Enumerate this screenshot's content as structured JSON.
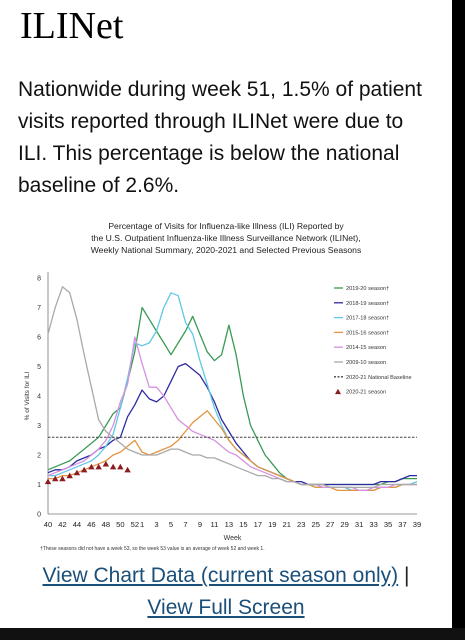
{
  "page": {
    "title": "ILINet",
    "summary": "Nationwide during week 51, 1.5% of patient visits reported through ILINet were due to ILI. This percentage is below the national baseline of 2.6%."
  },
  "links": {
    "chart_data": "View Chart Data (current season only)",
    "separator": " |",
    "full_screen": "View Full Screen"
  },
  "chart_data": {
    "type": "line",
    "title_lines": [
      "Percentage of Visits for Influenza-like Illness (ILI) Reported by",
      "the U.S. Outpatient Influenza-like Illness Surveillance Network (ILINet),",
      "Weekly National Summary, 2020-2021 and Selected Previous Seasons"
    ],
    "xlabel": "Week",
    "ylabel": "% of Visits for ILI",
    "ylim": [
      0,
      8
    ],
    "yticks": [
      0,
      1,
      2,
      3,
      4,
      5,
      6,
      7,
      8
    ],
    "weeks": [
      40,
      41,
      42,
      43,
      44,
      45,
      46,
      47,
      48,
      49,
      50,
      51,
      52,
      1,
      2,
      3,
      4,
      5,
      6,
      7,
      8,
      9,
      10,
      11,
      12,
      13,
      14,
      15,
      16,
      17,
      18,
      19,
      20,
      21,
      22,
      23,
      24,
      25,
      26,
      27,
      28,
      29,
      30,
      31,
      32,
      33,
      34,
      35,
      36,
      37,
      38,
      39
    ],
    "xtick_labels": [
      "40",
      "42",
      "44",
      "46",
      "48",
      "50",
      "52",
      "1",
      "3",
      "5",
      "7",
      "9",
      "11",
      "13",
      "15",
      "17",
      "19",
      "21",
      "23",
      "25",
      "27",
      "29",
      "31",
      "33",
      "35",
      "37",
      "39"
    ],
    "footnote": "†These seasons did not have a week 53, so the week 53 value is an average of week 52 and week 1.",
    "grid": false,
    "legend_position": "right",
    "series": [
      {
        "name": "2019-20 season†",
        "color": "#3a9a55",
        "values": [
          1.5,
          1.6,
          1.7,
          1.8,
          2.0,
          2.2,
          2.4,
          2.6,
          3.0,
          3.4,
          3.6,
          4.5,
          5.5,
          7.0,
          6.6,
          6.2,
          5.8,
          5.4,
          5.8,
          6.2,
          6.7,
          6.1,
          5.5,
          5.2,
          5.4,
          6.4,
          5.4,
          4.0,
          3.0,
          2.5,
          2.0,
          1.7,
          1.4,
          1.2,
          1.1,
          1.0,
          1.0,
          1.0,
          1.0,
          1.0,
          1.0,
          1.0,
          1.0,
          1.0,
          1.0,
          1.0,
          1.0,
          1.1,
          1.1,
          1.2,
          1.2,
          1.2
        ]
      },
      {
        "name": "2018-19 season†",
        "color": "#2e2aa1",
        "values": [
          1.4,
          1.5,
          1.5,
          1.6,
          1.8,
          1.9,
          2.0,
          2.2,
          2.3,
          2.5,
          2.6,
          3.3,
          3.7,
          4.2,
          3.9,
          3.8,
          4.0,
          4.5,
          5.0,
          5.1,
          4.9,
          4.7,
          4.3,
          3.8,
          3.2,
          2.8,
          2.4,
          2.1,
          1.8,
          1.6,
          1.5,
          1.4,
          1.3,
          1.2,
          1.1,
          1.1,
          1.0,
          1.0,
          1.0,
          1.0,
          1.0,
          1.0,
          1.0,
          1.0,
          1.0,
          1.0,
          1.1,
          1.1,
          1.1,
          1.2,
          1.3,
          1.3
        ]
      },
      {
        "name": "2017-18 season†",
        "color": "#5fc8e6",
        "values": [
          1.3,
          1.3,
          1.4,
          1.5,
          1.6,
          1.7,
          1.8,
          2.0,
          2.3,
          2.7,
          3.6,
          4.6,
          5.8,
          5.7,
          5.8,
          6.2,
          7.0,
          7.5,
          7.4,
          6.5,
          6.1,
          5.2,
          4.4,
          3.6,
          3.0,
          2.5,
          2.2,
          2.0,
          1.8,
          1.6,
          1.5,
          1.4,
          1.3,
          1.2,
          1.1,
          1.0,
          1.0,
          0.9,
          0.9,
          0.9,
          0.9,
          0.9,
          0.8,
          0.8,
          0.8,
          0.8,
          0.9,
          0.9,
          0.9,
          1.0,
          1.0,
          1.1
        ]
      },
      {
        "name": "2015-16 season†",
        "color": "#e49440",
        "values": [
          1.2,
          1.2,
          1.3,
          1.3,
          1.4,
          1.5,
          1.6,
          1.7,
          1.8,
          2.0,
          2.1,
          2.3,
          2.5,
          2.1,
          2.0,
          2.1,
          2.2,
          2.3,
          2.5,
          2.8,
          3.1,
          3.3,
          3.5,
          3.2,
          2.9,
          2.5,
          2.2,
          2.0,
          1.8,
          1.6,
          1.5,
          1.4,
          1.3,
          1.2,
          1.1,
          1.0,
          1.0,
          0.9,
          0.9,
          0.9,
          0.8,
          0.8,
          0.8,
          0.8,
          0.8,
          0.8,
          0.9,
          0.9,
          0.9,
          1.0,
          1.0,
          1.0
        ]
      },
      {
        "name": "2014-15 season",
        "color": "#d592e0",
        "values": [
          1.3,
          1.4,
          1.5,
          1.6,
          1.7,
          1.8,
          2.0,
          2.2,
          2.5,
          3.0,
          3.8,
          4.4,
          6.0,
          5.1,
          4.3,
          4.3,
          4.0,
          3.6,
          3.2,
          3.0,
          2.8,
          2.7,
          2.6,
          2.5,
          2.3,
          2.1,
          2.0,
          1.8,
          1.6,
          1.5,
          1.4,
          1.3,
          1.2,
          1.1,
          1.1,
          1.0,
          1.0,
          1.0,
          0.9,
          0.9,
          0.9,
          0.9,
          0.9,
          0.8,
          0.8,
          0.9,
          0.9,
          0.9,
          1.0,
          1.0,
          1.0,
          1.0
        ]
      },
      {
        "name": "2009-10 season",
        "color": "#a9a9a9",
        "values": [
          6.1,
          7.0,
          7.7,
          7.5,
          6.6,
          5.4,
          4.3,
          3.2,
          2.8,
          2.6,
          2.4,
          2.2,
          2.1,
          2.0,
          2.0,
          2.0,
          2.1,
          2.2,
          2.2,
          2.1,
          2.0,
          2.0,
          1.9,
          1.9,
          1.8,
          1.7,
          1.6,
          1.5,
          1.4,
          1.3,
          1.3,
          1.2,
          1.2,
          1.1,
          1.1,
          1.0,
          1.0,
          1.0,
          1.0,
          0.9,
          0.9,
          0.9,
          0.9,
          0.9,
          0.9,
          0.9,
          1.0,
          1.0,
          1.0,
          1.0,
          1.0,
          1.0
        ]
      },
      {
        "name": "2020-21 National Baseline",
        "color": "#444444",
        "dashed": true,
        "values": [
          2.6,
          2.6,
          2.6,
          2.6,
          2.6,
          2.6,
          2.6,
          2.6,
          2.6,
          2.6,
          2.6,
          2.6,
          2.6,
          2.6,
          2.6,
          2.6,
          2.6,
          2.6,
          2.6,
          2.6,
          2.6,
          2.6,
          2.6,
          2.6,
          2.6,
          2.6,
          2.6,
          2.6,
          2.6,
          2.6,
          2.6,
          2.6,
          2.6,
          2.6,
          2.6,
          2.6,
          2.6,
          2.6,
          2.6,
          2.6,
          2.6,
          2.6,
          2.6,
          2.6,
          2.6,
          2.6,
          2.6,
          2.6,
          2.6,
          2.6,
          2.6,
          2.6
        ]
      },
      {
        "name": "2020-21 season",
        "color": "#8a1c22",
        "marker": "triangle",
        "values": [
          1.1,
          1.2,
          1.2,
          1.3,
          1.4,
          1.5,
          1.6,
          1.6,
          1.7,
          1.6,
          1.6,
          1.5
        ]
      }
    ]
  }
}
